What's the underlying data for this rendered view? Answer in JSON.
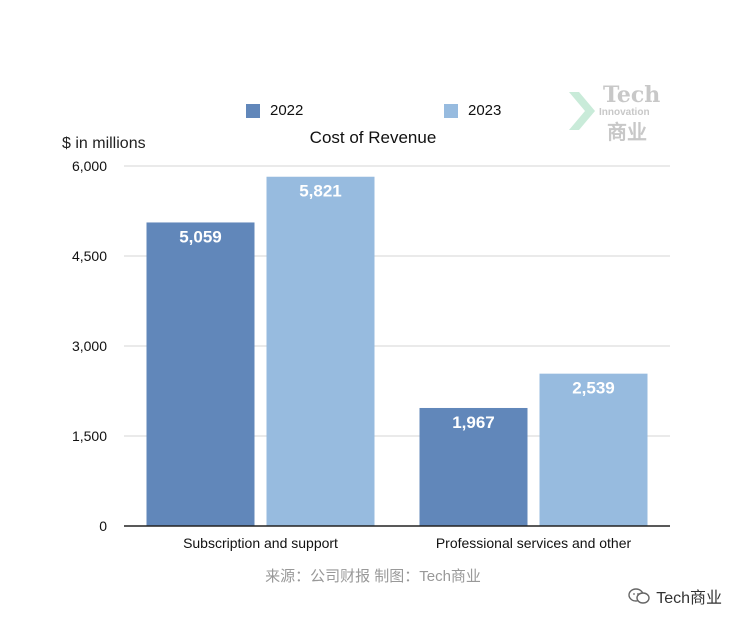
{
  "legend": [
    {
      "label": "2022",
      "color": "#6187ba"
    },
    {
      "label": "2023",
      "color": "#97bbdf"
    }
  ],
  "unit_label": "$ in millions",
  "chart_data": {
    "type": "bar",
    "title": "Cost of Revenue",
    "ylabel": "$ in millions",
    "categories": [
      "Subscription and support",
      "Professional services and other"
    ],
    "series": [
      {
        "name": "2022",
        "values": [
          5059,
          1967
        ],
        "color": "#6187ba"
      },
      {
        "name": "2023",
        "values": [
          5821,
          2539
        ],
        "color": "#97bbdf"
      }
    ],
    "ylim": [
      0,
      6000
    ],
    "yticks": [
      0,
      1500,
      3000,
      4500,
      6000
    ],
    "ytick_labels": [
      "0",
      "1,500",
      "3,000",
      "4,500",
      "6,000"
    ],
    "value_labels": [
      [
        "5,059",
        "1,967"
      ],
      [
        "5,821",
        "2,539"
      ]
    ],
    "grid": true,
    "legend_position": "top"
  },
  "source_note": "来源：公司财报 制图：Tech商业",
  "watermark": {
    "line1": "Tech",
    "line2": "Innovation",
    "line3": "商业",
    "icon": "chevron-icon"
  },
  "badge": {
    "text": "Tech商业",
    "icon": "wechat-icon"
  }
}
